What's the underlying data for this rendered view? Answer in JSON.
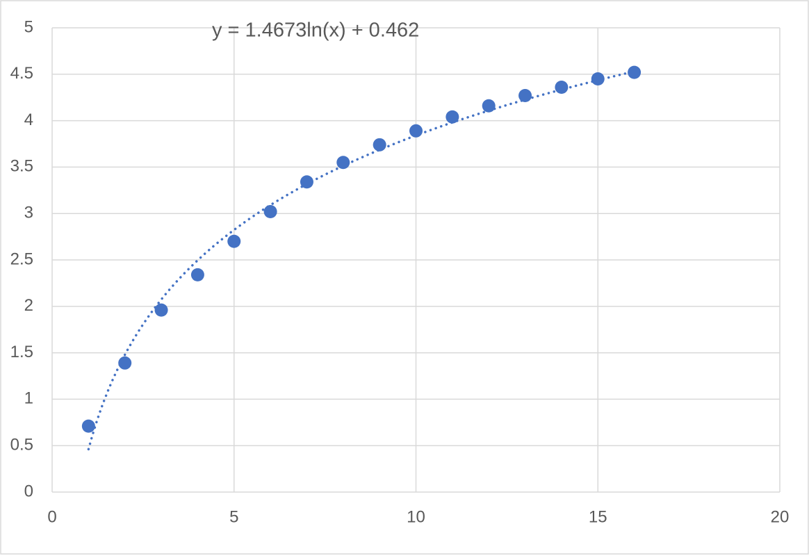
{
  "chart_data": {
    "type": "scatter",
    "x": [
      1,
      2,
      3,
      4,
      5,
      6,
      7,
      8,
      9,
      10,
      11,
      12,
      13,
      14,
      15,
      16
    ],
    "series": [
      {
        "color": "#4472c4",
        "values": [
          0.71,
          1.39,
          1.96,
          2.34,
          2.7,
          3.02,
          3.34,
          3.55,
          3.74,
          3.89,
          4.04,
          4.16,
          4.27,
          4.36,
          4.45,
          4.52
        ]
      }
    ],
    "trendline": {
      "kind": "log",
      "label": "y = 1.4673ln(x) + 0.462",
      "a": 1.4673,
      "b": 0.462,
      "style": "dotted"
    },
    "xlim": [
      0,
      20
    ],
    "xticks": [
      0,
      5,
      10,
      15,
      20
    ],
    "ylim": [
      0,
      5
    ],
    "yticks": [
      0,
      0.5,
      1,
      1.5,
      2,
      2.5,
      3,
      3.5,
      4,
      4.5,
      5
    ],
    "grid": true
  }
}
